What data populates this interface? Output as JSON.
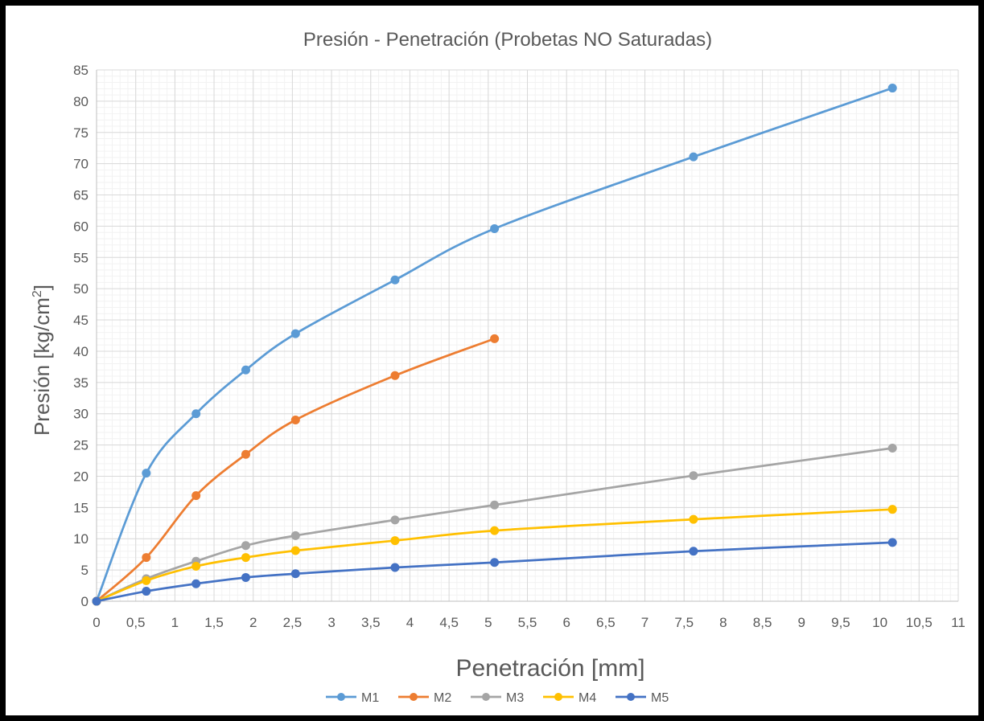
{
  "chart_data": {
    "type": "line",
    "title": "Presión - Penetración (Probetas NO Saturadas)",
    "xlabel": "Penetración [mm]",
    "ylabel_main": "Presión [kg/cm",
    "ylabel_sup": "2",
    "ylabel_end": "]",
    "xlim": [
      0,
      11
    ],
    "ylim": [
      0,
      85
    ],
    "xticks": [
      0,
      0.5,
      1,
      1.5,
      2,
      2.5,
      3,
      3.5,
      4,
      4.5,
      5,
      5.5,
      6,
      6.5,
      7,
      7.5,
      8,
      8.5,
      9,
      9.5,
      10,
      10.5,
      11
    ],
    "xtick_labels": [
      "0",
      "0,5",
      "1",
      "1,5",
      "2",
      "2,5",
      "3",
      "3,5",
      "4",
      "4,5",
      "5",
      "5,5",
      "6",
      "6,5",
      "7",
      "7,5",
      "8",
      "8,5",
      "9",
      "9,5",
      "10",
      "10,5",
      "11"
    ],
    "yticks": [
      0,
      5,
      10,
      15,
      20,
      25,
      30,
      35,
      40,
      45,
      50,
      55,
      60,
      65,
      70,
      75,
      80,
      85
    ],
    "ytick_labels": [
      "0",
      "5",
      "10",
      "15",
      "20",
      "25",
      "30",
      "35",
      "40",
      "45",
      "50",
      "55",
      "60",
      "65",
      "70",
      "75",
      "80",
      "85"
    ],
    "grid": true,
    "minor_grid": true,
    "legend_position": "bottom",
    "series": [
      {
        "name": "M1",
        "color": "#5B9BD5",
        "x": [
          0,
          0.635,
          1.27,
          1.905,
          2.54,
          3.81,
          5.08,
          7.62,
          10.16
        ],
        "y": [
          0,
          20.5,
          30.0,
          37.0,
          42.8,
          51.4,
          59.6,
          71.1,
          82.1
        ]
      },
      {
        "name": "M2",
        "color": "#ED7D31",
        "x": [
          0,
          0.635,
          1.27,
          1.905,
          2.54,
          3.81,
          5.08
        ],
        "y": [
          0,
          7.0,
          16.9,
          23.5,
          29.0,
          36.1,
          42.0
        ]
      },
      {
        "name": "M3",
        "color": "#A5A5A5",
        "x": [
          0,
          0.635,
          1.27,
          1.905,
          2.54,
          3.81,
          5.08,
          7.62,
          10.16
        ],
        "y": [
          0,
          3.6,
          6.4,
          8.9,
          10.5,
          13.0,
          15.4,
          20.1,
          24.5
        ]
      },
      {
        "name": "M4",
        "color": "#FFC000",
        "x": [
          0,
          0.635,
          1.27,
          1.905,
          2.54,
          3.81,
          5.08,
          7.62,
          10.16
        ],
        "y": [
          0,
          3.3,
          5.6,
          7.0,
          8.1,
          9.7,
          11.3,
          13.1,
          14.7
        ]
      },
      {
        "name": "M5",
        "color": "#4472C4",
        "x": [
          0,
          0.635,
          1.27,
          1.905,
          2.54,
          3.81,
          5.08,
          7.62,
          10.16
        ],
        "y": [
          0,
          1.6,
          2.8,
          3.8,
          4.4,
          5.4,
          6.2,
          8.0,
          9.4
        ]
      }
    ]
  }
}
